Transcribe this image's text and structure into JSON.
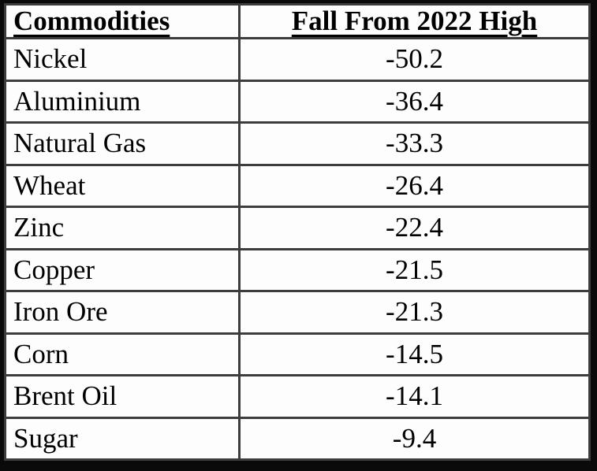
{
  "table": {
    "columns": [
      "Commodities",
      "Fall From 2022 High"
    ],
    "rows": [
      {
        "commodity": "Nickel",
        "fall": "-50.2"
      },
      {
        "commodity": "Aluminium",
        "fall": "-36.4"
      },
      {
        "commodity": "Natural Gas",
        "fall": "-33.3"
      },
      {
        "commodity": "Wheat",
        "fall": "-26.4"
      },
      {
        "commodity": "Zinc",
        "fall": "-22.4"
      },
      {
        "commodity": "Copper",
        "fall": "-21.5"
      },
      {
        "commodity": "Iron Ore",
        "fall": "-21.3"
      },
      {
        "commodity": "Corn",
        "fall": "-14.5"
      },
      {
        "commodity": "Brent Oil",
        "fall": "-14.1"
      },
      {
        "commodity": "Sugar",
        "fall": "-9.4"
      }
    ]
  },
  "chart_data": {
    "type": "table",
    "columns": [
      "Commodities",
      "Fall From 2022 High"
    ],
    "categories": [
      "Nickel",
      "Aluminium",
      "Natural Gas",
      "Wheat",
      "Zinc",
      "Copper",
      "Iron Ore",
      "Corn",
      "Brent Oil",
      "Sugar"
    ],
    "values": [
      -50.2,
      -36.4,
      -33.3,
      -26.4,
      -22.4,
      -21.5,
      -21.3,
      -14.5,
      -14.1,
      -9.4
    ]
  },
  "colors": {
    "text": "#000000",
    "grid_line": "#3d3d3d",
    "outer_frame": "#0a0a0a",
    "cell_background": "#fdfdfd"
  }
}
